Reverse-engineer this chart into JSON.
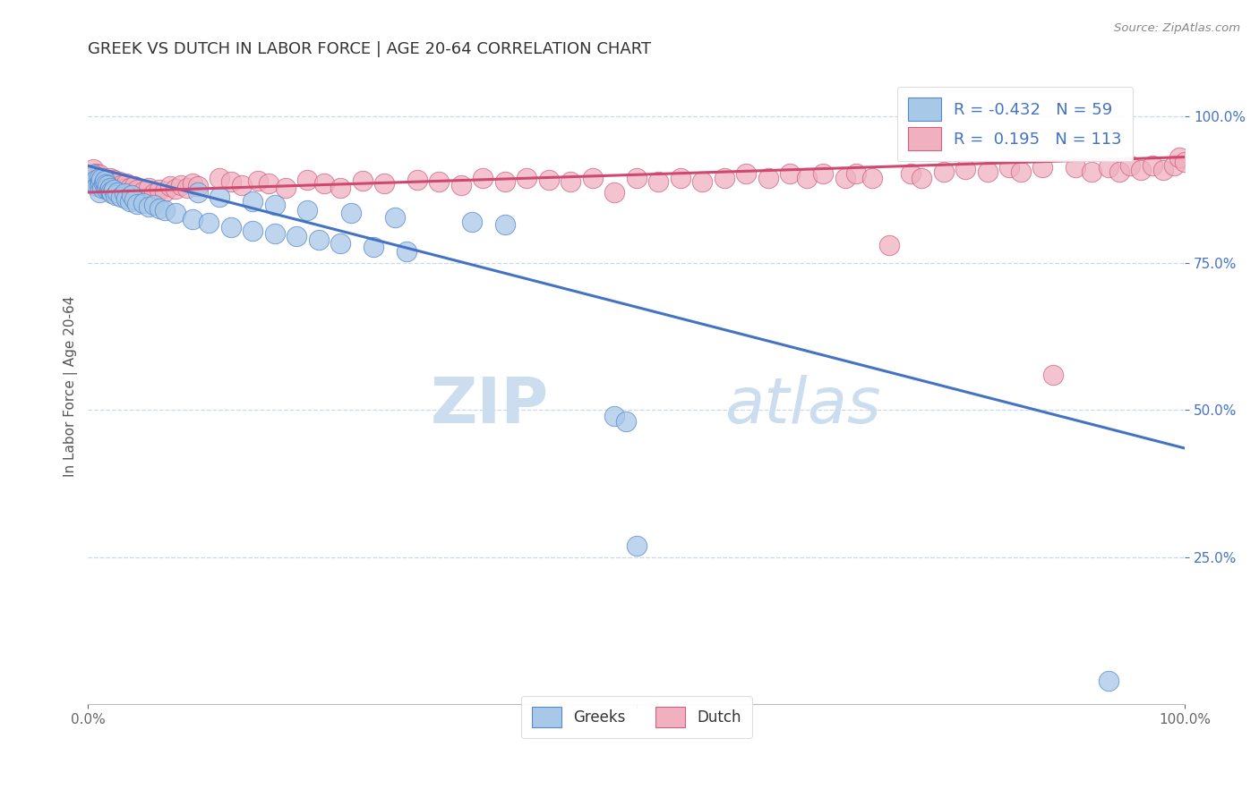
{
  "title": "GREEK VS DUTCH IN LABOR FORCE | AGE 20-64 CORRELATION CHART",
  "source_text": "Source: ZipAtlas.com",
  "ylabel": "In Labor Force | Age 20-64",
  "watermark_line1": "ZIP",
  "watermark_line2": "atlas",
  "xlim": [
    0.0,
    1.0
  ],
  "ylim": [
    0.0,
    1.08
  ],
  "yticks": [
    0.25,
    0.5,
    0.75,
    1.0
  ],
  "ytick_labels": [
    "25.0%",
    "50.0%",
    "75.0%",
    "100.0%"
  ],
  "xticks": [
    0.0,
    0.5,
    1.0
  ],
  "xtick_labels": [
    "0.0%",
    "",
    "100.0%"
  ],
  "greek_scatter_color": "#a8c8e8",
  "greek_edge_color": "#5588cc",
  "dutch_scatter_color": "#f0b0c0",
  "dutch_edge_color": "#d06080",
  "greek_line_color": "#4472c4",
  "dutch_line_color": "#d04870",
  "r_value_color": "#4472c4",
  "n_value_color": "#4472c4",
  "greek_r": -0.432,
  "greek_n": 59,
  "dutch_r": 0.195,
  "dutch_n": 113,
  "legend_label_greek": "Greeks",
  "legend_label_dutch": "Dutch",
  "title_fontsize": 13,
  "axis_label_fontsize": 11,
  "tick_fontsize": 11,
  "legend_fontsize": 13,
  "watermark_fontsize": 52,
  "watermark_color": "#ccddf0",
  "background_color": "#ffffff",
  "grid_color": "#c8d8ee",
  "greek_line_x0": 0.0,
  "greek_line_y0": 0.915,
  "greek_line_x1": 1.0,
  "greek_line_y1": 0.435,
  "dutch_line_x0": 0.0,
  "dutch_line_y0": 0.87,
  "dutch_line_x1": 1.0,
  "dutch_line_y1": 0.93,
  "greek_points": [
    [
      0.005,
      0.9
    ],
    [
      0.006,
      0.885
    ],
    [
      0.007,
      0.892
    ],
    [
      0.008,
      0.88
    ],
    [
      0.01,
      0.895
    ],
    [
      0.01,
      0.882
    ],
    [
      0.01,
      0.87
    ],
    [
      0.011,
      0.888
    ],
    [
      0.012,
      0.893
    ],
    [
      0.013,
      0.878
    ],
    [
      0.014,
      0.885
    ],
    [
      0.015,
      0.89
    ],
    [
      0.016,
      0.883
    ],
    [
      0.017,
      0.876
    ],
    [
      0.018,
      0.882
    ],
    [
      0.019,
      0.875
    ],
    [
      0.02,
      0.878
    ],
    [
      0.021,
      0.872
    ],
    [
      0.022,
      0.868
    ],
    [
      0.023,
      0.875
    ],
    [
      0.025,
      0.865
    ],
    [
      0.027,
      0.87
    ],
    [
      0.03,
      0.862
    ],
    [
      0.033,
      0.868
    ],
    [
      0.035,
      0.86
    ],
    [
      0.038,
      0.855
    ],
    [
      0.04,
      0.865
    ],
    [
      0.042,
      0.858
    ],
    [
      0.045,
      0.85
    ],
    [
      0.05,
      0.852
    ],
    [
      0.055,
      0.845
    ],
    [
      0.06,
      0.848
    ],
    [
      0.065,
      0.842
    ],
    [
      0.07,
      0.84
    ],
    [
      0.08,
      0.835
    ],
    [
      0.095,
      0.825
    ],
    [
      0.11,
      0.818
    ],
    [
      0.13,
      0.81
    ],
    [
      0.15,
      0.805
    ],
    [
      0.17,
      0.8
    ],
    [
      0.19,
      0.795
    ],
    [
      0.21,
      0.79
    ],
    [
      0.23,
      0.783
    ],
    [
      0.26,
      0.777
    ],
    [
      0.29,
      0.77
    ],
    [
      0.1,
      0.87
    ],
    [
      0.12,
      0.862
    ],
    [
      0.15,
      0.855
    ],
    [
      0.17,
      0.848
    ],
    [
      0.2,
      0.84
    ],
    [
      0.24,
      0.835
    ],
    [
      0.28,
      0.828
    ],
    [
      0.35,
      0.82
    ],
    [
      0.38,
      0.815
    ],
    [
      0.48,
      0.49
    ],
    [
      0.49,
      0.48
    ],
    [
      0.5,
      0.27
    ],
    [
      0.93,
      0.04
    ]
  ],
  "dutch_points": [
    [
      0.005,
      0.91
    ],
    [
      0.006,
      0.895
    ],
    [
      0.007,
      0.902
    ],
    [
      0.008,
      0.888
    ],
    [
      0.01,
      0.9
    ],
    [
      0.01,
      0.89
    ],
    [
      0.011,
      0.895
    ],
    [
      0.012,
      0.885
    ],
    [
      0.013,
      0.892
    ],
    [
      0.014,
      0.88
    ],
    [
      0.015,
      0.895
    ],
    [
      0.016,
      0.888
    ],
    [
      0.017,
      0.875
    ],
    [
      0.018,
      0.89
    ],
    [
      0.019,
      0.882
    ],
    [
      0.02,
      0.895
    ],
    [
      0.021,
      0.885
    ],
    [
      0.022,
      0.878
    ],
    [
      0.023,
      0.892
    ],
    [
      0.025,
      0.885
    ],
    [
      0.027,
      0.878
    ],
    [
      0.028,
      0.888
    ],
    [
      0.03,
      0.882
    ],
    [
      0.033,
      0.876
    ],
    [
      0.035,
      0.885
    ],
    [
      0.038,
      0.878
    ],
    [
      0.04,
      0.87
    ],
    [
      0.042,
      0.88
    ],
    [
      0.045,
      0.875
    ],
    [
      0.05,
      0.872
    ],
    [
      0.055,
      0.878
    ],
    [
      0.06,
      0.868
    ],
    [
      0.065,
      0.875
    ],
    [
      0.07,
      0.872
    ],
    [
      0.075,
      0.88
    ],
    [
      0.08,
      0.876
    ],
    [
      0.085,
      0.882
    ],
    [
      0.09,
      0.878
    ],
    [
      0.095,
      0.885
    ],
    [
      0.1,
      0.88
    ],
    [
      0.12,
      0.895
    ],
    [
      0.13,
      0.888
    ],
    [
      0.14,
      0.882
    ],
    [
      0.155,
      0.89
    ],
    [
      0.165,
      0.885
    ],
    [
      0.18,
      0.878
    ],
    [
      0.2,
      0.892
    ],
    [
      0.215,
      0.885
    ],
    [
      0.23,
      0.878
    ],
    [
      0.25,
      0.89
    ],
    [
      0.27,
      0.885
    ],
    [
      0.3,
      0.892
    ],
    [
      0.32,
      0.888
    ],
    [
      0.34,
      0.882
    ],
    [
      0.36,
      0.895
    ],
    [
      0.38,
      0.888
    ],
    [
      0.4,
      0.895
    ],
    [
      0.42,
      0.892
    ],
    [
      0.44,
      0.888
    ],
    [
      0.46,
      0.895
    ],
    [
      0.48,
      0.87
    ],
    [
      0.5,
      0.895
    ],
    [
      0.52,
      0.888
    ],
    [
      0.54,
      0.895
    ],
    [
      0.56,
      0.888
    ],
    [
      0.58,
      0.895
    ],
    [
      0.6,
      0.902
    ],
    [
      0.62,
      0.895
    ],
    [
      0.64,
      0.902
    ],
    [
      0.655,
      0.895
    ],
    [
      0.67,
      0.902
    ],
    [
      0.69,
      0.895
    ],
    [
      0.7,
      0.902
    ],
    [
      0.715,
      0.895
    ],
    [
      0.73,
      0.78
    ],
    [
      0.75,
      0.902
    ],
    [
      0.76,
      0.895
    ],
    [
      0.78,
      0.905
    ],
    [
      0.8,
      0.91
    ],
    [
      0.82,
      0.905
    ],
    [
      0.84,
      0.912
    ],
    [
      0.85,
      0.905
    ],
    [
      0.87,
      0.912
    ],
    [
      0.88,
      0.56
    ],
    [
      0.9,
      0.912
    ],
    [
      0.915,
      0.905
    ],
    [
      0.93,
      0.912
    ],
    [
      0.94,
      0.905
    ],
    [
      0.95,
      0.915
    ],
    [
      0.96,
      0.908
    ],
    [
      0.97,
      0.915
    ],
    [
      0.98,
      0.908
    ],
    [
      0.99,
      0.915
    ],
    [
      0.995,
      0.93
    ],
    [
      1.0,
      0.922
    ]
  ]
}
